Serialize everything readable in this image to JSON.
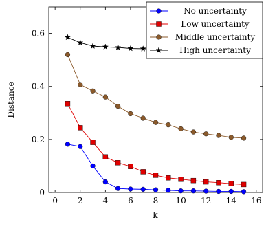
{
  "chart_data": {
    "type": "line",
    "title": "",
    "xlabel": "k",
    "ylabel": "Distance",
    "xlim": [
      -0.5,
      16.5
    ],
    "ylim": [
      0,
      0.7
    ],
    "xticks": [
      0,
      2,
      4,
      6,
      8,
      10,
      12,
      14,
      16
    ],
    "yticks": [
      0,
      0.2,
      0.4,
      0.6
    ],
    "xtick_labels": [
      "0",
      "2",
      "4",
      "6",
      "8",
      "10",
      "12",
      "14",
      "16"
    ],
    "ytick_labels": [
      "0",
      "0.2",
      "0.4",
      "0.6"
    ],
    "grid": false,
    "legend_position": "top-right",
    "x": [
      1,
      2,
      3,
      4,
      5,
      6,
      7,
      8,
      9,
      10,
      11,
      12,
      13,
      14,
      15
    ],
    "series": [
      {
        "name": "No uncertainty",
        "color": "#0000ff",
        "marker": "circle",
        "values": [
          0.182,
          0.173,
          0.1,
          0.04,
          0.015,
          0.013,
          0.012,
          0.01,
          0.008,
          0.006,
          0.006,
          0.005,
          0.004,
          0.004,
          0.003
        ]
      },
      {
        "name": "Low uncertainty",
        "color": "#e00000",
        "marker": "square",
        "values": [
          0.335,
          0.244,
          0.189,
          0.134,
          0.112,
          0.098,
          0.078,
          0.065,
          0.055,
          0.05,
          0.045,
          0.04,
          0.037,
          0.033,
          0.03
        ]
      },
      {
        "name": "Middle uncertainty",
        "color": "#8b5a2b",
        "marker": "circle",
        "values": [
          0.52,
          0.407,
          0.383,
          0.36,
          0.325,
          0.297,
          0.28,
          0.264,
          0.255,
          0.24,
          0.228,
          0.221,
          0.215,
          0.208,
          0.205
        ]
      },
      {
        "name": "High uncertainty",
        "color": "#000000",
        "marker": "star",
        "values": [
          0.585,
          0.565,
          0.552,
          0.549,
          0.547,
          0.543,
          0.542,
          0.541,
          0.541,
          0.54,
          0.539,
          0.539,
          0.538,
          0.538,
          0.537
        ]
      }
    ]
  }
}
